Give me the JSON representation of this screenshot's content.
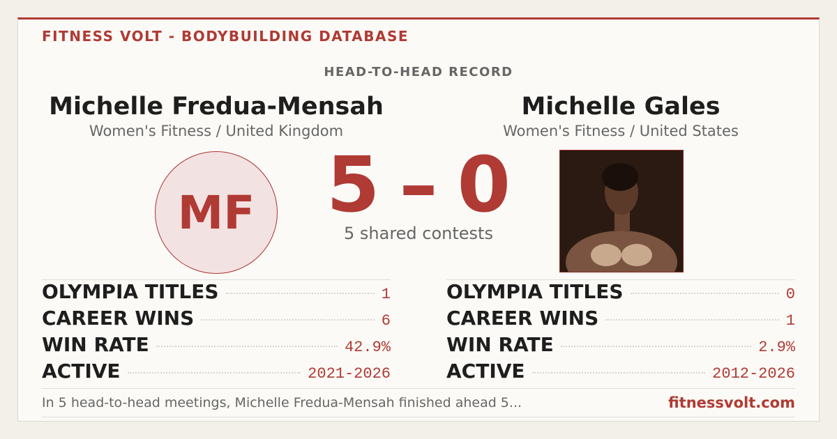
{
  "header": {
    "brand": "FITNESS VOLT - BODYBUILDING DATABASE",
    "subtitle": "HEAD-TO-HEAD RECORD"
  },
  "left": {
    "name": "Michelle Fredua-Mensah",
    "division": "Women's Fitness / United Kingdom",
    "initials": "MF",
    "stats": [
      [
        "OLYMPIA TITLES",
        "1"
      ],
      [
        "CAREER WINS",
        "6"
      ],
      [
        "WIN RATE",
        "42.9%"
      ],
      [
        "ACTIVE",
        "2021-2026"
      ]
    ]
  },
  "right": {
    "name": "Michelle Gales",
    "division": "Women's Fitness / United States",
    "stats": [
      [
        "OLYMPIA TITLES",
        "0"
      ],
      [
        "CAREER WINS",
        "1"
      ],
      [
        "WIN RATE",
        "2.9%"
      ],
      [
        "ACTIVE",
        "2012-2026"
      ]
    ]
  },
  "score": {
    "left": 5,
    "separator": "–",
    "right": 0,
    "caption": "5 shared contests"
  },
  "footer": {
    "summary": "In 5 head-to-head meetings, Michelle Fredua-Mensah finished ahead 5...",
    "site": "fitnessvolt.com"
  }
}
